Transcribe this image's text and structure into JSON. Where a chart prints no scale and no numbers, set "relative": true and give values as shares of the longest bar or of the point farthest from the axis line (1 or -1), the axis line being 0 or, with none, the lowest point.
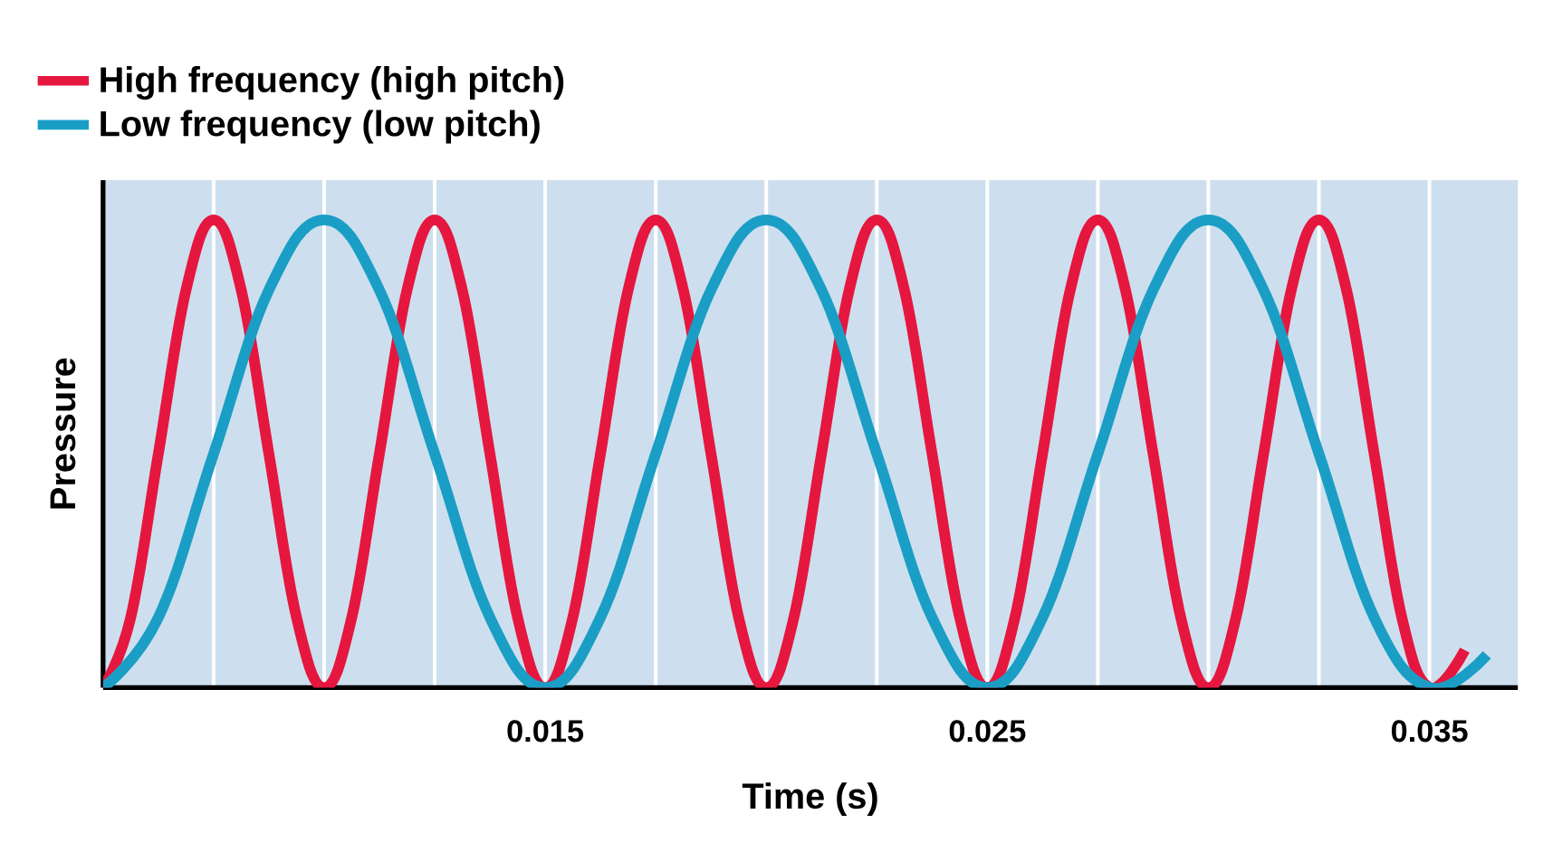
{
  "chart_data": {
    "type": "line",
    "xlabel": "Time (s)",
    "ylabel": "Pressure",
    "relative": true,
    "xlim": [
      0.005,
      0.037
    ],
    "xticks": [
      {
        "value": 0.0075,
        "label": null
      },
      {
        "value": 0.01,
        "label": null
      },
      {
        "value": 0.0125,
        "label": null
      },
      0.015,
      {
        "value": 0.0175,
        "label": null
      },
      {
        "value": 0.02,
        "label": null
      },
      {
        "value": 0.0225,
        "label": null
      },
      0.025,
      {
        "value": 0.0275,
        "label": null
      },
      {
        "value": 0.03,
        "label": null
      },
      {
        "value": 0.0325,
        "label": null
      },
      0.035
    ],
    "grid": "x",
    "legend": "top left",
    "tick_labels": "x",
    "series": [
      {
        "name": "High frequency (high pitch)",
        "color": "#e5173f",
        "x": [
          0.005,
          0.005625,
          0.00625,
          0.006875,
          0.0075,
          0.008125,
          0.00875,
          0.009375,
          0.01,
          0.010625,
          0.01125,
          0.011875,
          0.0125,
          0.013125,
          0.01375,
          0.014375,
          0.015,
          0.015625,
          0.01625,
          0.016875,
          0.0175,
          0.018125,
          0.01875,
          0.019375,
          0.02,
          0.020625,
          0.02125,
          0.021875,
          0.0225,
          0.023125,
          0.02375,
          0.024375,
          0.025,
          0.025625,
          0.02625,
          0.026875,
          0.0275,
          0.028125,
          0.02875,
          0.029375,
          0.03,
          0.030625,
          0.03125,
          0.031875,
          0.0325,
          0.033125,
          0.03375,
          0.034375,
          0.035,
          0.0358
        ],
        "values": [
          0,
          0.15,
          0.5,
          0.85,
          1,
          0.85,
          0.5,
          0.15,
          0,
          0.15,
          0.5,
          0.85,
          1,
          0.85,
          0.5,
          0.15,
          0,
          0.15,
          0.5,
          0.85,
          1,
          0.85,
          0.5,
          0.15,
          0,
          0.15,
          0.5,
          0.85,
          1,
          0.85,
          0.5,
          0.15,
          0,
          0.15,
          0.5,
          0.85,
          1,
          0.85,
          0.5,
          0.15,
          0,
          0.15,
          0.5,
          0.85,
          1,
          0.85,
          0.5,
          0.15,
          0,
          0.08
        ]
      },
      {
        "name": "Low frequency (low pitch)",
        "color": "#1a9ec6",
        "x": [
          0.005,
          0.00625,
          0.0075,
          0.00875,
          0.01,
          0.01125,
          0.0125,
          0.01375,
          0.015,
          0.01625,
          0.0175,
          0.01875,
          0.02,
          0.02125,
          0.0225,
          0.02375,
          0.025,
          0.02625,
          0.0275,
          0.02875,
          0.03,
          0.03125,
          0.0325,
          0.03375,
          0.035,
          0.0363
        ],
        "values": [
          0,
          0.15,
          0.5,
          0.85,
          1,
          0.85,
          0.5,
          0.15,
          0,
          0.15,
          0.5,
          0.85,
          1,
          0.85,
          0.5,
          0.15,
          0,
          0.15,
          0.5,
          0.85,
          1,
          0.85,
          0.5,
          0.15,
          0,
          0.07
        ]
      }
    ]
  }
}
